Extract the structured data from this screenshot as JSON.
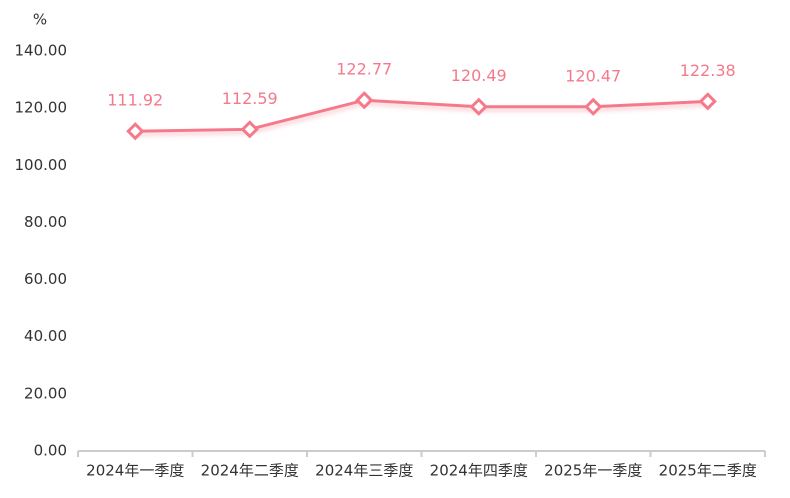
{
  "chart_data": {
    "type": "line",
    "y_label": "%",
    "categories": [
      "2024年一季度",
      "2024年二季度",
      "2024年三季度",
      "2024年四季度",
      "2025年一季度",
      "2025年二季度"
    ],
    "values": [
      111.92,
      112.59,
      122.77,
      120.49,
      120.47,
      122.38
    ],
    "color": "#f47a8b",
    "ylim": [
      0,
      140
    ],
    "yticks": [
      {
        "value": 0,
        "label": "0.00"
      },
      {
        "value": 20,
        "label": "20.00"
      },
      {
        "value": 40,
        "label": "40.00"
      },
      {
        "value": 60,
        "label": "60.00"
      },
      {
        "value": 80,
        "label": "80.00"
      },
      {
        "value": 100,
        "label": "100.00"
      },
      {
        "value": 120,
        "label": "120.00"
      },
      {
        "value": 140,
        "label": "140.00"
      }
    ],
    "grid": false
  }
}
